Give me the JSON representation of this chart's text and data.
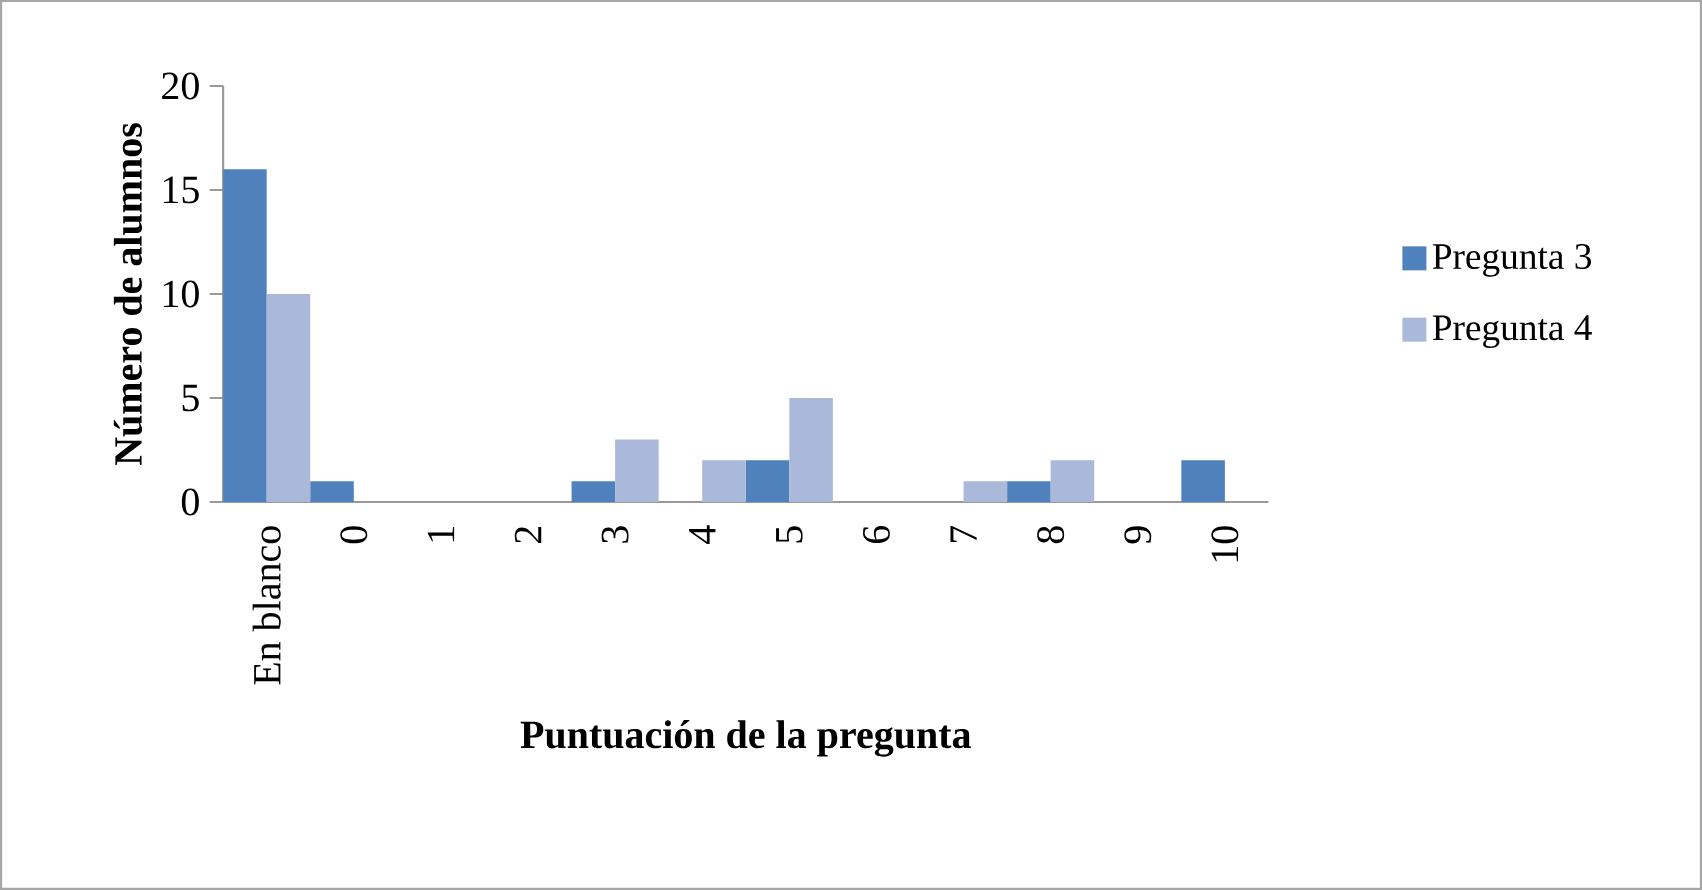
{
  "chart_data": {
    "type": "bar",
    "xlabel": "Puntuación de la pregunta",
    "ylabel": "Número de alumnos",
    "categories": [
      "En blanco",
      "0",
      "1",
      "2",
      "3",
      "4",
      "5",
      "6",
      "7",
      "8",
      "9",
      "10"
    ],
    "series": [
      {
        "name": "Pregunta 3",
        "color": "#4f81bd",
        "values": [
          16,
          1,
          0,
          0,
          1,
          0,
          2,
          0,
          0,
          1,
          0,
          2
        ]
      },
      {
        "name": "Pregunta 4",
        "color": "#aab9d9",
        "values": [
          10,
          0,
          0,
          0,
          3,
          2,
          5,
          0,
          1,
          2,
          0,
          0
        ]
      }
    ],
    "ylim": [
      0,
      20
    ],
    "yticks": [
      0,
      5,
      10,
      15,
      20
    ],
    "legend": "right"
  }
}
